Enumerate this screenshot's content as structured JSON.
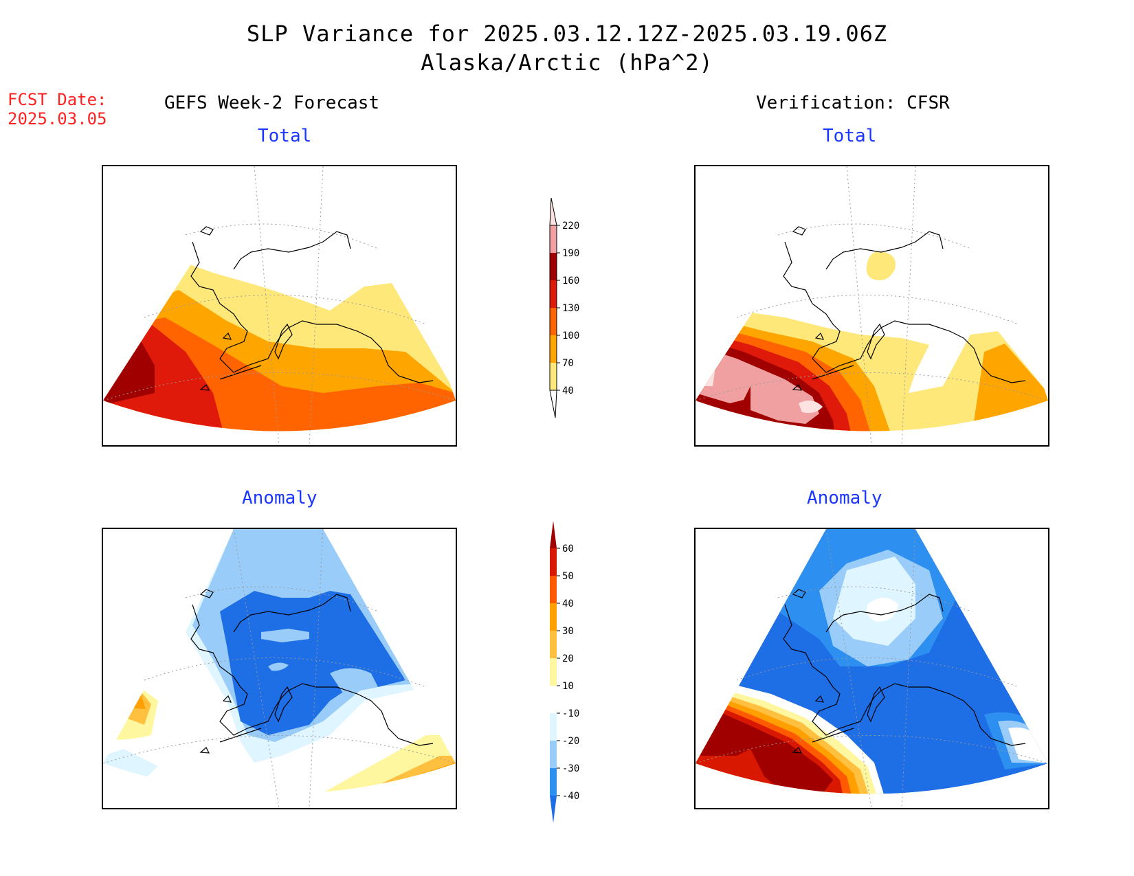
{
  "title": {
    "line1": "SLP Variance for 2025.03.12.12Z-2025.03.19.06Z",
    "line2": "Alaska/Arctic (hPa^2)"
  },
  "forecast_date": {
    "label": "FCST Date:",
    "value": "2025.03.05"
  },
  "columns": {
    "left": "GEFS Week-2 Forecast",
    "right": "Verification: CFSR"
  },
  "panels": {
    "total_label": "Total",
    "anomaly_label": "Anomaly"
  },
  "colorbar_total": {
    "levels": [
      "40",
      "70",
      "100",
      "130",
      "160",
      "190",
      "220"
    ],
    "colors": [
      "#ffe87a",
      "#ffa500",
      "#ff6400",
      "#e01a0a",
      "#a00000",
      "#f0a0a0",
      "#fde2e2"
    ]
  },
  "colorbar_anomaly": {
    "levels": [
      "-40",
      "-30",
      "-20",
      "-10",
      "10",
      "20",
      "30",
      "40",
      "50",
      "60"
    ],
    "colors": [
      "#1e6ee6",
      "#2d8ff0",
      "#99ccf8",
      "#dff5ff",
      "#ffffff",
      "#fff7a0",
      "#ffc040",
      "#ff9f00",
      "#ff5a00",
      "#d81800",
      "#a00000"
    ]
  }
}
